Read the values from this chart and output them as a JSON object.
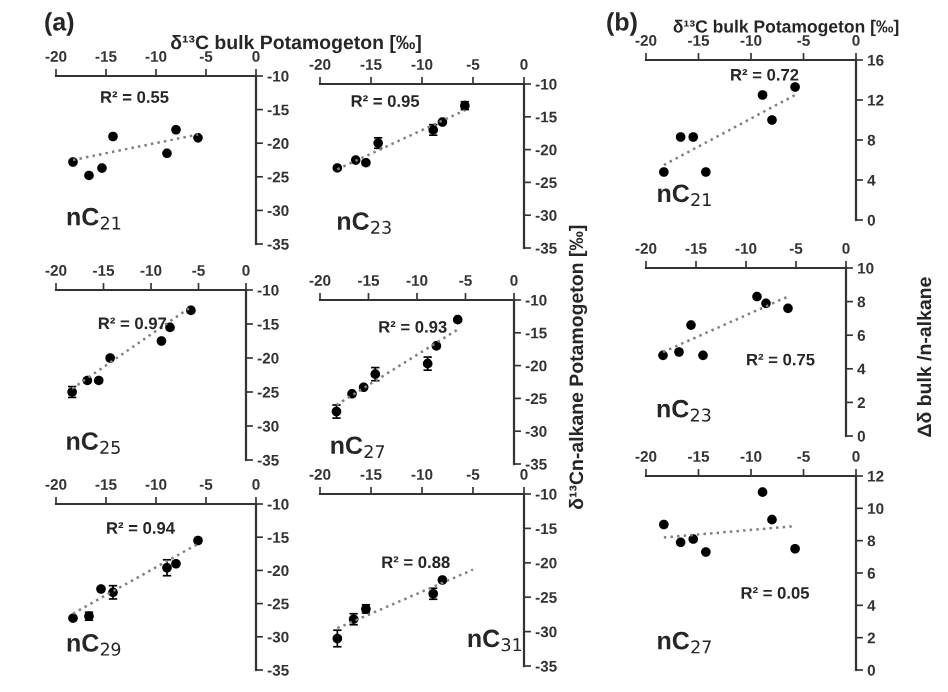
{
  "chart_data": [
    {
      "type": "scatter",
      "title": "(a)",
      "xlabel": "δ¹³C bulk Potamogeton [‰]",
      "xlim": [
        -20,
        0
      ],
      "xticks": [
        -20,
        -15,
        -10,
        -5,
        0
      ],
      "ylim": [
        -35,
        -10
      ],
      "yticks": [
        -35,
        -30,
        -25,
        -20,
        -15,
        -10
      ],
      "annotations": [
        "R² = 0.55",
        "nC$_{21}$"
      ],
      "series": [
        {
          "color": "#000000",
          "marker": "circle",
          "x": [
            -18.3,
            -16.7,
            -15.4,
            -14.3,
            -8.9,
            -8.0,
            -5.8
          ],
          "values": [
            -22.8,
            -24.8,
            -23.7,
            -19,
            -21.5,
            -18,
            -19.2
          ]
        },
        {
          "type": "line",
          "line_style": "dotted",
          "color": "#808080",
          "x": [
            -18.3,
            -5.8
          ],
          "values": [
            -22.5,
            -18.7
          ]
        }
      ]
    },
    {
      "type": "scatter",
      "xlim": [
        -20,
        0
      ],
      "xticks": [
        -20,
        -15,
        -10,
        -5,
        0
      ],
      "ylim": [
        -35,
        -10
      ],
      "yticks": [
        -35,
        -30,
        -25,
        -20,
        -15,
        -10
      ],
      "annotations": [
        "R² = 0.95",
        "nC$_{23}$"
      ],
      "series": [
        {
          "color": "#000000",
          "marker": "circle",
          "x": [
            -18.3,
            -16.5,
            -15.5,
            -14.3,
            -8.9,
            -8.0,
            -5.8
          ],
          "values": [
            -22.8,
            -21.6,
            -22,
            -19,
            -17,
            -15.8,
            -13.3
          ],
          "errors": [
            null,
            null,
            null,
            0.8,
            0.8,
            null,
            0.6
          ]
        },
        {
          "type": "line",
          "line_style": "dotted",
          "color": "#808080",
          "x": [
            -18.3,
            -5.8
          ],
          "values": [
            -23,
            -14
          ]
        }
      ]
    },
    {
      "type": "scatter",
      "title": "(b)",
      "xlabel": "δ¹³C bulk Potamogeton [‰]",
      "xlim": [
        -20,
        0
      ],
      "xticks": [
        -20,
        -15,
        -10,
        -5,
        0
      ],
      "ylim": [
        0,
        16
      ],
      "yticks": [
        0,
        4,
        8,
        12,
        16
      ],
      "annotations": [
        "R² = 0.72",
        "nC$_{21}$"
      ],
      "series": [
        {
          "color": "#000000",
          "marker": "circle",
          "x": [
            -18.3,
            -16.7,
            -15.5,
            -14.3,
            -8.9,
            -8.0,
            -5.8
          ],
          "values": [
            4.8,
            8.3,
            8.3,
            4.8,
            12.5,
            10,
            13.3
          ]
        },
        {
          "type": "line",
          "line_style": "dotted",
          "color": "#808080",
          "x": [
            -18.3,
            -5.8
          ],
          "values": [
            5.5,
            12.5
          ]
        }
      ]
    },
    {
      "type": "scatter",
      "xlim": [
        -20,
        0
      ],
      "xticks": [
        -20,
        -15,
        -10,
        -5,
        0
      ],
      "ylim": [
        -35,
        -10
      ],
      "yticks": [
        -35,
        -30,
        -25,
        -20,
        -15,
        -10
      ],
      "annotations": [
        "R² = 0.97",
        "nC$_{25}$"
      ],
      "series": [
        {
          "color": "#000000",
          "marker": "circle",
          "x": [
            -18.3,
            -16.7,
            -15.5,
            -14.3,
            -8.9,
            -8.0,
            -5.8
          ],
          "values": [
            -25,
            -23.3,
            -23.3,
            -20,
            -17.5,
            -15.5,
            -13
          ],
          "errors": [
            0.8,
            null,
            null,
            null,
            null,
            null,
            null
          ]
        },
        {
          "type": "line",
          "line_style": "dotted",
          "color": "#808080",
          "x": [
            -18.3,
            -5.8
          ],
          "values": [
            -24.5,
            -12.5
          ]
        }
      ]
    },
    {
      "type": "scatter",
      "ylabel": "δ¹³Cn-alkane Potamogeton [‰]",
      "xlim": [
        -20,
        0
      ],
      "xticks": [
        -20,
        -15,
        -10,
        -5,
        0
      ],
      "ylim": [
        -35,
        -10
      ],
      "yticks": [
        -35,
        -30,
        -25,
        -20,
        -15,
        -10
      ],
      "annotations": [
        "R² = 0.93",
        "nC$_{27}$"
      ],
      "series": [
        {
          "color": "#000000",
          "marker": "circle",
          "x": [
            -18.3,
            -16.7,
            -15.5,
            -14.3,
            -8.9,
            -8.0,
            -5.8
          ],
          "values": [
            -27,
            -24.3,
            -23.3,
            -21.3,
            -19.7,
            -17,
            -13
          ],
          "errors": [
            1,
            null,
            null,
            1,
            1,
            null,
            null
          ]
        },
        {
          "type": "line",
          "line_style": "dotted",
          "color": "#808080",
          "x": [
            -18.3,
            -5.8
          ],
          "values": [
            -26,
            -14.5
          ]
        }
      ]
    },
    {
      "type": "scatter",
      "ylabel": "Δδ bulk /n-alkane",
      "xlim": [
        -20,
        0
      ],
      "xticks": [
        -20,
        -15,
        -10,
        -5,
        0
      ],
      "ylim": [
        0,
        10
      ],
      "yticks": [
        0,
        2,
        4,
        6,
        8,
        10
      ],
      "annotations": [
        "R² = 0.75",
        "nC$_{23}$"
      ],
      "series": [
        {
          "color": "#000000",
          "marker": "circle",
          "x": [
            -18.3,
            -16.7,
            -15.5,
            -14.3,
            -8.9,
            -8.0,
            -5.8
          ],
          "values": [
            4.8,
            5,
            6.6,
            4.8,
            8.3,
            7.9,
            7.6
          ]
        },
        {
          "type": "line",
          "line_style": "dotted",
          "color": "#808080",
          "x": [
            -18.3,
            -5.8
          ],
          "values": [
            5,
            8.3
          ]
        }
      ]
    },
    {
      "type": "scatter",
      "xlim": [
        -20,
        0
      ],
      "xticks": [
        -20,
        -15,
        -10,
        -5,
        0
      ],
      "ylim": [
        -35,
        -10
      ],
      "yticks": [
        -35,
        -30,
        -25,
        -20,
        -15,
        -10
      ],
      "annotations": [
        "R² = 0.94",
        "nC$_{29}$"
      ],
      "series": [
        {
          "color": "#000000",
          "marker": "circle",
          "x": [
            -18.3,
            -16.7,
            -15.5,
            -14.3,
            -8.9,
            -8.0,
            -5.8
          ],
          "values": [
            -27.2,
            -26.9,
            -22.8,
            -23.3,
            -19.6,
            -19,
            -15.5
          ],
          "errors": [
            null,
            0.6,
            null,
            1,
            1.2,
            null,
            null
          ]
        },
        {
          "type": "line",
          "line_style": "dotted",
          "color": "#808080",
          "x": [
            -18.3,
            -5.8
          ],
          "values": [
            -26.5,
            -16
          ]
        }
      ]
    },
    {
      "type": "scatter",
      "xlim": [
        -20,
        0
      ],
      "xticks": [
        -20,
        -15,
        -10,
        -5,
        0
      ],
      "ylim": [
        -35,
        -10
      ],
      "yticks": [
        -35,
        -30,
        -25,
        -20,
        -15,
        -10
      ],
      "annotations": [
        "R² = 0.88",
        "nC$_{31}$"
      ],
      "series": [
        {
          "color": "#000000",
          "marker": "circle",
          "x": [
            -18.3,
            -16.7,
            -15.5,
            -8.9,
            -8.0
          ],
          "values": [
            -31,
            -28.2,
            -26.7,
            -24.5,
            -22.5
          ],
          "errors": [
            1.2,
            0.8,
            0.6,
            0.8,
            null
          ]
        },
        {
          "type": "line",
          "line_style": "dotted",
          "color": "#808080",
          "x": [
            -18.3,
            -5
          ],
          "values": [
            -29.5,
            -21
          ]
        }
      ]
    },
    {
      "type": "scatter",
      "xlim": [
        -20,
        0
      ],
      "xticks": [
        -20,
        -15,
        -10,
        -5,
        0
      ],
      "ylim": [
        0,
        12
      ],
      "yticks": [
        0,
        2,
        4,
        6,
        8,
        10,
        12
      ],
      "annotations": [
        "R² = 0.05",
        "nC$_{27}$"
      ],
      "series": [
        {
          "color": "#000000",
          "marker": "circle",
          "x": [
            -18.3,
            -16.7,
            -15.5,
            -14.3,
            -8.9,
            -8.0,
            -5.8
          ],
          "values": [
            9,
            7.9,
            8.1,
            7.3,
            11,
            9.3,
            7.5
          ]
        },
        {
          "type": "line",
          "line_style": "dotted",
          "color": "#808080",
          "x": [
            -18.3,
            -5.8
          ],
          "values": [
            8.2,
            8.9
          ]
        }
      ]
    }
  ]
}
